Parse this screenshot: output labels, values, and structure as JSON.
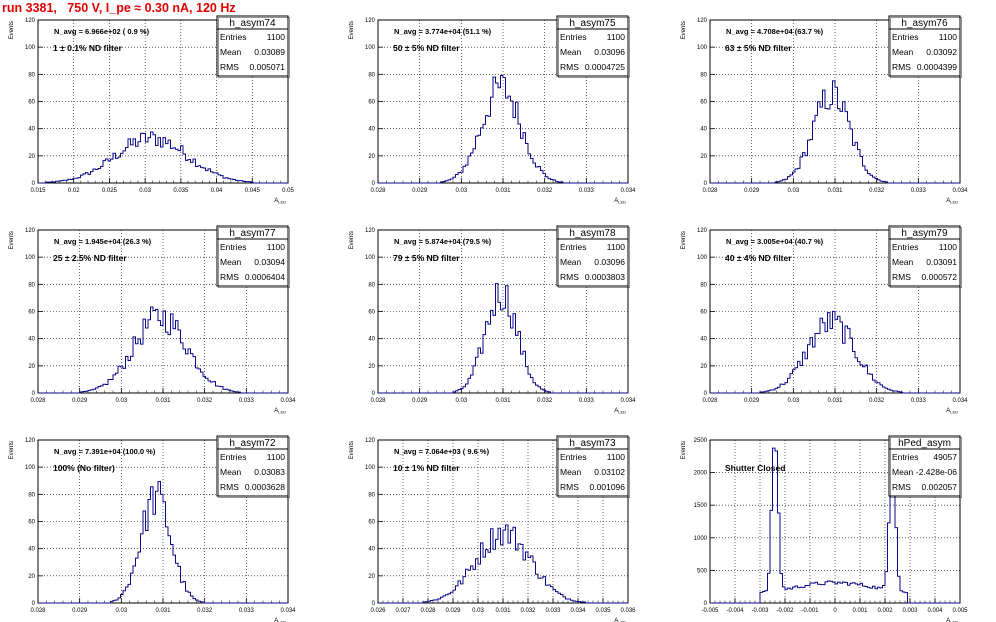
{
  "header": "run 3381,   750 V, I_pe ≈ 0.30 nA, 120 Hz",
  "chart_data": [
    {
      "type": "histogram",
      "name": "h_asym74",
      "nlabel": "N_avg = 6.966e+02 ( 0.9 %)",
      "filter": "1 ± 0.1% ND filter",
      "stats": {
        "entries": "1100",
        "mean": "0.03089",
        "rms": "0.005071"
      },
      "xlim": [
        0.015,
        0.05
      ],
      "ylim": [
        0,
        120
      ],
      "xticks": [
        "0.015",
        "0.02",
        "0.025",
        "0.03",
        "0.035",
        "0.04",
        "0.045",
        "0.05"
      ],
      "yticks": [
        "0",
        "20",
        "40",
        "60",
        "80",
        "100",
        "120"
      ],
      "xlabel": "A_LED",
      "ylabel": "Events",
      "mean": 0.03089,
      "sigma": 0.005071,
      "peak": 33,
      "shape": "gauss"
    },
    {
      "type": "histogram",
      "name": "h_asym75",
      "nlabel": "N_avg = 3.774e+04 (51.1 %)",
      "filter": "50 ± 5% ND filter",
      "stats": {
        "entries": "1100",
        "mean": "0.03096",
        "rms": "0.0004725"
      },
      "xlim": [
        0.028,
        0.034
      ],
      "ylim": [
        0,
        120
      ],
      "xticks": [
        "0.028",
        "0.029",
        "0.03",
        "0.031",
        "0.032",
        "0.033",
        "0.034"
      ],
      "yticks": [
        "0",
        "20",
        "40",
        "60",
        "80",
        "100",
        "120"
      ],
      "xlabel": "A_LED",
      "ylabel": "Events",
      "mean": 0.03096,
      "sigma": 0.0004725,
      "peak": 70,
      "shape": "gauss"
    },
    {
      "type": "histogram",
      "name": "h_asym76",
      "nlabel": "N_avg = 4.708e+04 (63.7 %)",
      "filter": "63 ± 5% ND filter",
      "stats": {
        "entries": "1100",
        "mean": "0.03092",
        "rms": "0.0004399"
      },
      "xlim": [
        0.028,
        0.034
      ],
      "ylim": [
        0,
        120
      ],
      "xticks": [
        "0.028",
        "0.029",
        "0.03",
        "0.031",
        "0.032",
        "0.033",
        "0.034"
      ],
      "yticks": [
        "0",
        "20",
        "40",
        "60",
        "80",
        "100",
        "120"
      ],
      "xlabel": "A_LED",
      "ylabel": "Events",
      "mean": 0.03092,
      "sigma": 0.0004399,
      "peak": 65,
      "shape": "gauss"
    },
    {
      "type": "histogram",
      "name": "h_asym77",
      "nlabel": "N_avg = 1.945e+04 (26.3 %)",
      "filter": "25 ± 2.5% ND filter",
      "stats": {
        "entries": "1100",
        "mean": "0.03094",
        "rms": "0.0006404"
      },
      "xlim": [
        0.028,
        0.034
      ],
      "ylim": [
        0,
        120
      ],
      "xticks": [
        "0.028",
        "0.029",
        "0.03",
        "0.031",
        "0.032",
        "0.033",
        "0.034"
      ],
      "yticks": [
        "0",
        "20",
        "40",
        "60",
        "80",
        "100",
        "120"
      ],
      "xlabel": "A_LED",
      "ylabel": "Events",
      "mean": 0.03094,
      "sigma": 0.0006404,
      "peak": 56,
      "shape": "gauss"
    },
    {
      "type": "histogram",
      "name": "h_asym78",
      "nlabel": "N_avg = 5.874e+04 (79.5 %)",
      "filter": "79 ± 5% ND filter",
      "stats": {
        "entries": "1100",
        "mean": "0.03096",
        "rms": "0.0003803"
      },
      "xlim": [
        0.028,
        0.034
      ],
      "ylim": [
        0,
        120
      ],
      "xticks": [
        "0.028",
        "0.029",
        "0.03",
        "0.031",
        "0.032",
        "0.033",
        "0.034"
      ],
      "yticks": [
        "0",
        "20",
        "40",
        "60",
        "80",
        "100",
        "120"
      ],
      "xlabel": "A_LED",
      "ylabel": "Events",
      "mean": 0.03096,
      "sigma": 0.0003803,
      "peak": 74,
      "shape": "gauss"
    },
    {
      "type": "histogram",
      "name": "h_asym79",
      "nlabel": "N_avg = 3.005e+04 (40.7 %)",
      "filter": "40 ± 4% ND filter",
      "stats": {
        "entries": "1100",
        "mean": "0.03091",
        "rms": "0.000572"
      },
      "xlim": [
        0.028,
        0.034
      ],
      "ylim": [
        0,
        120
      ],
      "xticks": [
        "0.028",
        "0.029",
        "0.03",
        "0.031",
        "0.032",
        "0.033",
        "0.034"
      ],
      "yticks": [
        "0",
        "20",
        "40",
        "60",
        "80",
        "100",
        "120"
      ],
      "xlabel": "A_LED",
      "ylabel": "Events",
      "mean": 0.03091,
      "sigma": 0.000572,
      "peak": 52,
      "shape": "gauss"
    },
    {
      "type": "histogram",
      "name": "h_asym72",
      "nlabel": "N_avg = 7.391e+04 (100.0 %)",
      "filter": "100% (No filter)",
      "stats": {
        "entries": "1100",
        "mean": "0.03083",
        "rms": "0.0003628"
      },
      "xlim": [
        0.028,
        0.034
      ],
      "ylim": [
        0,
        120
      ],
      "xticks": [
        "0.028",
        "0.029",
        "0.03",
        "0.031",
        "0.032",
        "0.033",
        "0.034"
      ],
      "yticks": [
        "0",
        "20",
        "40",
        "60",
        "80",
        "100",
        "120"
      ],
      "xlabel": "A_LED",
      "ylabel": "Events",
      "mean": 0.03083,
      "sigma": 0.0003628,
      "peak": 78,
      "shape": "gauss"
    },
    {
      "type": "histogram",
      "name": "h_asym73",
      "nlabel": "N_avg = 7.064e+03 ( 9.6 %)",
      "filter": "10 ± 1% ND filter",
      "stats": {
        "entries": "1100",
        "mean": "0.03102",
        "rms": "0.001096"
      },
      "xlim": [
        0.026,
        0.036
      ],
      "ylim": [
        0,
        120
      ],
      "xticks": [
        "0.026",
        "0.027",
        "0.028",
        "0.029",
        "0.03",
        "0.031",
        "0.032",
        "0.033",
        "0.034",
        "0.035",
        "0.036"
      ],
      "yticks": [
        "0",
        "20",
        "40",
        "60",
        "80",
        "100",
        "120"
      ],
      "xlabel": "A_LED",
      "ylabel": "Events",
      "mean": 0.03102,
      "sigma": 0.001096,
      "peak": 52,
      "shape": "gauss"
    },
    {
      "type": "histogram",
      "name": "hPed_asym",
      "nlabel": "",
      "filter": "Shutter Closed",
      "stats": {
        "entries": "49057",
        "mean": "-2.428e-06",
        "rms": "0.002057"
      },
      "xlim": [
        -0.005,
        0.005
      ],
      "ylim": [
        0,
        2500
      ],
      "xticks": [
        "-0.005",
        "-0.004",
        "-0.003",
        "-0.002",
        "-0.001",
        "0",
        "0.001",
        "0.002",
        "0.003",
        "0.004",
        "0.005"
      ],
      "yticks": [
        "0",
        "500",
        "1000",
        "1500",
        "2000",
        "2500"
      ],
      "xlabel": "A_LED",
      "ylabel": "Events",
      "shape": "bimodal",
      "peaks": [
        -0.0024,
        0.0023
      ],
      "peakHeights": [
        2450,
        2300
      ],
      "base": 270
    }
  ]
}
